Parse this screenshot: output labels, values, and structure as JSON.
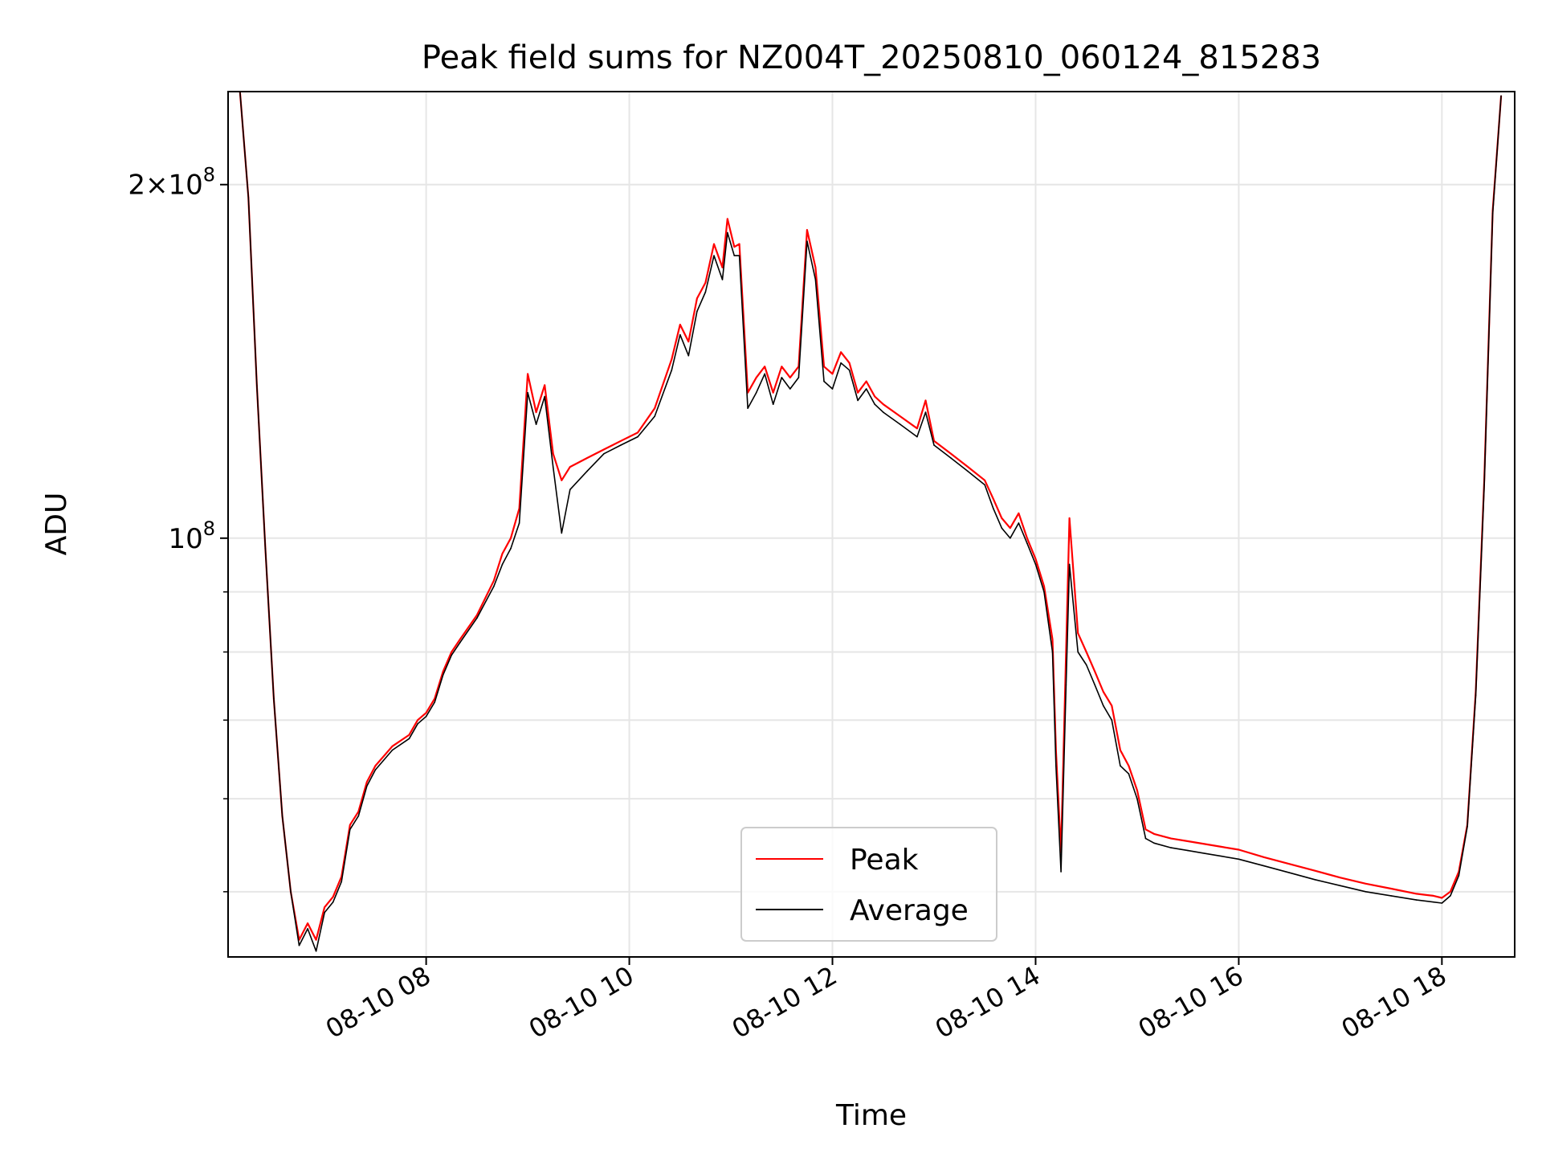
{
  "chart_data": {
    "type": "line",
    "title": "Peak field sums for NZ004T_20250810_060124_815283",
    "xlabel": "Time",
    "ylabel": "ADU",
    "y_scale": "log",
    "ylim": [
      44000000,
      240000000
    ],
    "xlim": [
      "2025-08-10 06:03",
      "2025-08-10 18:43"
    ],
    "x_ticks": [
      {
        "t": "2025-08-10 08:00",
        "label": "08-10 08"
      },
      {
        "t": "2025-08-10 10:00",
        "label": "08-10 10"
      },
      {
        "t": "2025-08-10 12:00",
        "label": "08-10 12"
      },
      {
        "t": "2025-08-10 14:00",
        "label": "08-10 14"
      },
      {
        "t": "2025-08-10 16:00",
        "label": "08-10 16"
      },
      {
        "t": "2025-08-10 18:00",
        "label": "08-10 18"
      }
    ],
    "y_major_ticks": [
      {
        "v": 100000000,
        "label_base": "10",
        "label_exp": "8"
      },
      {
        "v": 200000000,
        "label_mant": "2",
        "label_base": "10",
        "label_exp": "8"
      }
    ],
    "y_minor_ticks": [
      50000000,
      60000000,
      70000000,
      80000000,
      90000000
    ],
    "grid": true,
    "legend_position": "bottom-center",
    "series": [
      {
        "name": "Peak",
        "color": "#ff0000",
        "x": [
          "2025-08-10 06:10",
          "2025-08-10 06:15",
          "2025-08-10 06:20",
          "2025-08-10 06:25",
          "2025-08-10 06:30",
          "2025-08-10 06:35",
          "2025-08-10 06:40",
          "2025-08-10 06:45",
          "2025-08-10 06:50",
          "2025-08-10 06:55",
          "2025-08-10 07:00",
          "2025-08-10 07:05",
          "2025-08-10 07:10",
          "2025-08-10 07:15",
          "2025-08-10 07:20",
          "2025-08-10 07:25",
          "2025-08-10 07:30",
          "2025-08-10 07:40",
          "2025-08-10 07:50",
          "2025-08-10 07:55",
          "2025-08-10 08:00",
          "2025-08-10 08:05",
          "2025-08-10 08:10",
          "2025-08-10 08:15",
          "2025-08-10 08:20",
          "2025-08-10 08:30",
          "2025-08-10 08:40",
          "2025-08-10 08:45",
          "2025-08-10 08:50",
          "2025-08-10 08:55",
          "2025-08-10 09:00",
          "2025-08-10 09:05",
          "2025-08-10 09:10",
          "2025-08-10 09:15",
          "2025-08-10 09:20",
          "2025-08-10 09:25",
          "2025-08-10 09:35",
          "2025-08-10 09:45",
          "2025-08-10 09:55",
          "2025-08-10 10:05",
          "2025-08-10 10:15",
          "2025-08-10 10:25",
          "2025-08-10 10:30",
          "2025-08-10 10:35",
          "2025-08-10 10:40",
          "2025-08-10 10:45",
          "2025-08-10 10:50",
          "2025-08-10 10:55",
          "2025-08-10 10:58",
          "2025-08-10 11:02",
          "2025-08-10 11:05",
          "2025-08-10 11:10",
          "2025-08-10 11:15",
          "2025-08-10 11:20",
          "2025-08-10 11:25",
          "2025-08-10 11:30",
          "2025-08-10 11:35",
          "2025-08-10 11:40",
          "2025-08-10 11:45",
          "2025-08-10 11:50",
          "2025-08-10 11:55",
          "2025-08-10 12:00",
          "2025-08-10 12:05",
          "2025-08-10 12:10",
          "2025-08-10 12:15",
          "2025-08-10 12:20",
          "2025-08-10 12:25",
          "2025-08-10 12:30",
          "2025-08-10 12:40",
          "2025-08-10 12:50",
          "2025-08-10 12:55",
          "2025-08-10 13:00",
          "2025-08-10 13:10",
          "2025-08-10 13:20",
          "2025-08-10 13:30",
          "2025-08-10 13:35",
          "2025-08-10 13:40",
          "2025-08-10 13:45",
          "2025-08-10 13:50",
          "2025-08-10 13:55",
          "2025-08-10 14:00",
          "2025-08-10 14:05",
          "2025-08-10 14:10",
          "2025-08-10 14:12",
          "2025-08-10 14:15",
          "2025-08-10 14:18",
          "2025-08-10 14:20",
          "2025-08-10 14:25",
          "2025-08-10 14:30",
          "2025-08-10 14:35",
          "2025-08-10 14:40",
          "2025-08-10 14:45",
          "2025-08-10 14:50",
          "2025-08-10 14:55",
          "2025-08-10 15:00",
          "2025-08-10 15:05",
          "2025-08-10 15:10",
          "2025-08-10 15:20",
          "2025-08-10 15:30",
          "2025-08-10 15:40",
          "2025-08-10 15:50",
          "2025-08-10 16:00",
          "2025-08-10 16:15",
          "2025-08-10 16:30",
          "2025-08-10 16:45",
          "2025-08-10 17:00",
          "2025-08-10 17:15",
          "2025-08-10 17:30",
          "2025-08-10 17:45",
          "2025-08-10 17:55",
          "2025-08-10 18:00",
          "2025-08-10 18:05",
          "2025-08-10 18:10",
          "2025-08-10 18:15",
          "2025-08-10 18:20",
          "2025-08-10 18:25",
          "2025-08-10 18:30",
          "2025-08-10 18:35"
        ],
        "y": [
          240000000,
          195000000,
          135000000,
          98000000,
          73000000,
          58000000,
          50000000,
          45500000,
          47000000,
          45500000,
          48500000,
          49500000,
          51500000,
          57000000,
          58500000,
          62000000,
          64000000,
          66500000,
          68000000,
          70000000,
          71000000,
          73000000,
          77000000,
          80000000,
          82000000,
          86000000,
          92000000,
          97000000,
          100000000,
          106000000,
          138000000,
          128000000,
          135000000,
          118000000,
          112000000,
          115000000,
          117000000,
          119000000,
          121000000,
          123000000,
          129000000,
          142000000,
          152000000,
          147000000,
          160000000,
          165000000,
          178000000,
          170000000,
          187000000,
          177000000,
          178000000,
          133000000,
          137000000,
          140000000,
          133000000,
          140000000,
          137000000,
          140000000,
          183000000,
          170000000,
          140000000,
          138000000,
          144000000,
          141000000,
          133000000,
          136000000,
          132000000,
          130000000,
          127000000,
          124000000,
          131000000,
          121000000,
          118000000,
          115000000,
          112000000,
          108000000,
          104000000,
          102000000,
          105000000,
          100000000,
          96000000,
          91000000,
          82000000,
          66000000,
          54000000,
          80000000,
          104000000,
          83000000,
          80000000,
          77000000,
          74000000,
          72000000,
          66000000,
          64000000,
          61000000,
          56500000,
          56000000,
          55500000,
          55200000,
          54900000,
          54600000,
          54300000,
          53500000,
          52800000,
          52100000,
          51400000,
          50800000,
          50300000,
          49800000,
          49600000,
          49400000,
          50000000,
          52000000,
          57000000,
          74000000,
          112000000,
          190000000,
          238000000
        ]
      },
      {
        "name": "Average",
        "color": "#000000",
        "x": [
          "2025-08-10 06:10",
          "2025-08-10 06:15",
          "2025-08-10 06:20",
          "2025-08-10 06:25",
          "2025-08-10 06:30",
          "2025-08-10 06:35",
          "2025-08-10 06:40",
          "2025-08-10 06:45",
          "2025-08-10 06:50",
          "2025-08-10 06:55",
          "2025-08-10 07:00",
          "2025-08-10 07:05",
          "2025-08-10 07:10",
          "2025-08-10 07:15",
          "2025-08-10 07:20",
          "2025-08-10 07:25",
          "2025-08-10 07:30",
          "2025-08-10 07:40",
          "2025-08-10 07:50",
          "2025-08-10 07:55",
          "2025-08-10 08:00",
          "2025-08-10 08:05",
          "2025-08-10 08:10",
          "2025-08-10 08:15",
          "2025-08-10 08:20",
          "2025-08-10 08:30",
          "2025-08-10 08:40",
          "2025-08-10 08:45",
          "2025-08-10 08:50",
          "2025-08-10 08:55",
          "2025-08-10 09:00",
          "2025-08-10 09:05",
          "2025-08-10 09:10",
          "2025-08-10 09:15",
          "2025-08-10 09:20",
          "2025-08-10 09:25",
          "2025-08-10 09:35",
          "2025-08-10 09:45",
          "2025-08-10 09:55",
          "2025-08-10 10:05",
          "2025-08-10 10:15",
          "2025-08-10 10:25",
          "2025-08-10 10:30",
          "2025-08-10 10:35",
          "2025-08-10 10:40",
          "2025-08-10 10:45",
          "2025-08-10 10:50",
          "2025-08-10 10:55",
          "2025-08-10 10:58",
          "2025-08-10 11:02",
          "2025-08-10 11:05",
          "2025-08-10 11:10",
          "2025-08-10 11:15",
          "2025-08-10 11:20",
          "2025-08-10 11:25",
          "2025-08-10 11:30",
          "2025-08-10 11:35",
          "2025-08-10 11:40",
          "2025-08-10 11:45",
          "2025-08-10 11:50",
          "2025-08-10 11:55",
          "2025-08-10 12:00",
          "2025-08-10 12:05",
          "2025-08-10 12:10",
          "2025-08-10 12:15",
          "2025-08-10 12:20",
          "2025-08-10 12:25",
          "2025-08-10 12:30",
          "2025-08-10 12:40",
          "2025-08-10 12:50",
          "2025-08-10 12:55",
          "2025-08-10 13:00",
          "2025-08-10 13:10",
          "2025-08-10 13:20",
          "2025-08-10 13:30",
          "2025-08-10 13:35",
          "2025-08-10 13:40",
          "2025-08-10 13:45",
          "2025-08-10 13:50",
          "2025-08-10 13:55",
          "2025-08-10 14:00",
          "2025-08-10 14:05",
          "2025-08-10 14:10",
          "2025-08-10 14:12",
          "2025-08-10 14:15",
          "2025-08-10 14:18",
          "2025-08-10 14:20",
          "2025-08-10 14:25",
          "2025-08-10 14:30",
          "2025-08-10 14:35",
          "2025-08-10 14:40",
          "2025-08-10 14:45",
          "2025-08-10 14:50",
          "2025-08-10 14:55",
          "2025-08-10 15:00",
          "2025-08-10 15:05",
          "2025-08-10 15:10",
          "2025-08-10 15:20",
          "2025-08-10 15:30",
          "2025-08-10 15:40",
          "2025-08-10 15:50",
          "2025-08-10 16:00",
          "2025-08-10 16:15",
          "2025-08-10 16:30",
          "2025-08-10 16:45",
          "2025-08-10 17:00",
          "2025-08-10 17:15",
          "2025-08-10 17:30",
          "2025-08-10 17:45",
          "2025-08-10 17:55",
          "2025-08-10 18:00",
          "2025-08-10 18:05",
          "2025-08-10 18:10",
          "2025-08-10 18:15",
          "2025-08-10 18:20",
          "2025-08-10 18:25",
          "2025-08-10 18:30",
          "2025-08-10 18:35"
        ],
        "y": [
          240000000,
          195000000,
          135000000,
          98000000,
          73000000,
          58000000,
          50000000,
          45000000,
          46500000,
          44500000,
          48000000,
          49000000,
          51000000,
          56500000,
          58000000,
          61500000,
          63500000,
          66000000,
          67500000,
          69500000,
          70500000,
          72500000,
          76500000,
          79500000,
          81500000,
          85500000,
          91000000,
          95000000,
          98000000,
          103000000,
          133000000,
          125000000,
          132000000,
          115000000,
          101000000,
          110000000,
          114000000,
          118000000,
          120000000,
          122000000,
          127000000,
          139000000,
          149000000,
          143000000,
          156000000,
          162000000,
          174000000,
          166000000,
          182000000,
          174000000,
          174000000,
          129000000,
          133000000,
          138000000,
          130000000,
          137000000,
          134000000,
          137000000,
          179000000,
          166000000,
          136000000,
          134000000,
          141000000,
          139000000,
          131000000,
          134000000,
          130000000,
          128000000,
          125000000,
          122000000,
          128000000,
          120000000,
          117000000,
          114000000,
          111000000,
          106000000,
          102000000,
          100000000,
          103000000,
          99000000,
          95000000,
          90000000,
          80000000,
          64000000,
          52000000,
          75000000,
          95000000,
          80000000,
          78000000,
          75000000,
          72000000,
          70000000,
          64000000,
          63000000,
          60000000,
          55500000,
          55000000,
          54500000,
          54200000,
          53900000,
          53600000,
          53300000,
          52600000,
          51900000,
          51200000,
          50600000,
          50000000,
          49600000,
          49200000,
          49000000,
          48900000,
          49600000,
          51600000,
          56800000,
          73500000,
          111000000,
          189000000,
          238000000
        ]
      }
    ]
  }
}
